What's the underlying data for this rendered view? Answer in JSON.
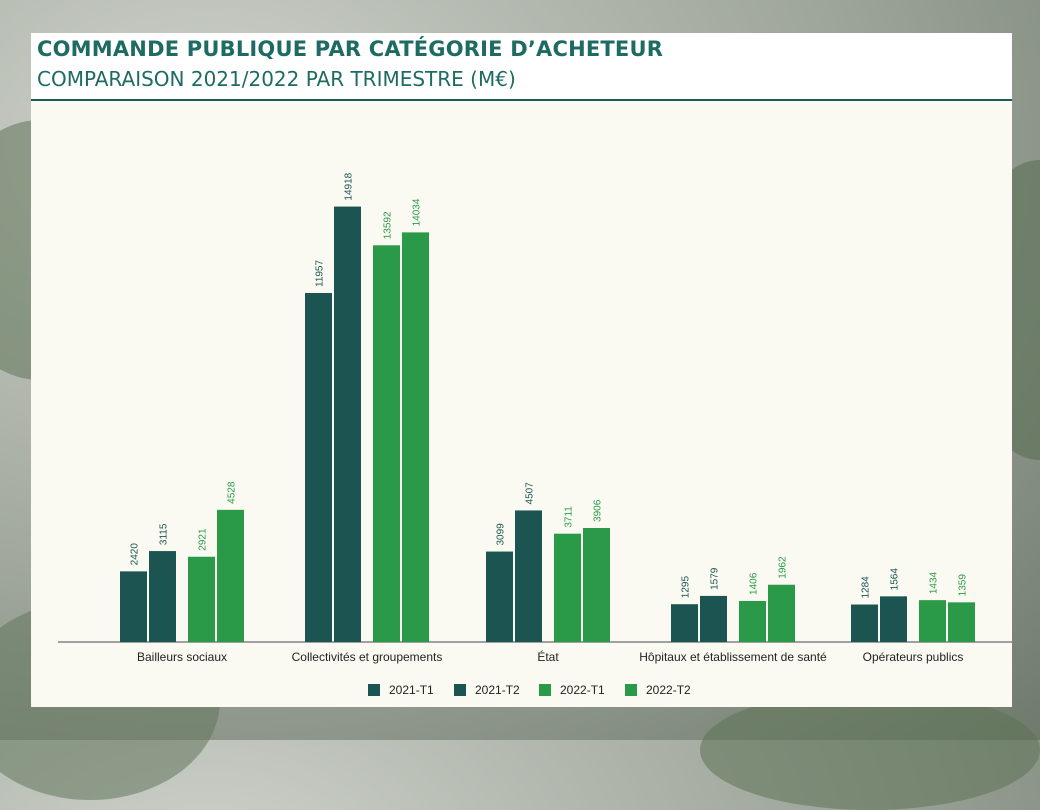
{
  "header": {
    "title": "COMMANDE PUBLIQUE PAR CATÉGORIE D’ACHETEUR",
    "subtitle": "COMPARAISON 2021/2022 PAR TRIMESTRE (M€)"
  },
  "colors": {
    "dark": "#1b5450",
    "green": "#2a9a48",
    "title": "#1d6b62"
  },
  "chart_data": {
    "type": "bar",
    "categories": [
      "Bailleurs sociaux",
      "Collectivités et groupements",
      "État",
      "Hôpitaux et établissement de santé",
      "Opérateurs publics"
    ],
    "series": [
      {
        "name": "2021-T1",
        "color": "#1b5450",
        "values": [
          2420,
          11957,
          3099,
          1295,
          1284
        ]
      },
      {
        "name": "2021-T2",
        "color": "#1b5450",
        "values": [
          3115,
          14918,
          4507,
          1579,
          1564
        ]
      },
      {
        "name": "2022-T1",
        "color": "#2a9a48",
        "values": [
          2921,
          13592,
          3711,
          1406,
          1434
        ]
      },
      {
        "name": "2022-T2",
        "color": "#2a9a48",
        "values": [
          4528,
          14034,
          3906,
          1962,
          1359
        ]
      }
    ],
    "ylim": [
      0,
      16000
    ],
    "grid": false,
    "legend_position": "bottom-center",
    "data_labels": true
  }
}
